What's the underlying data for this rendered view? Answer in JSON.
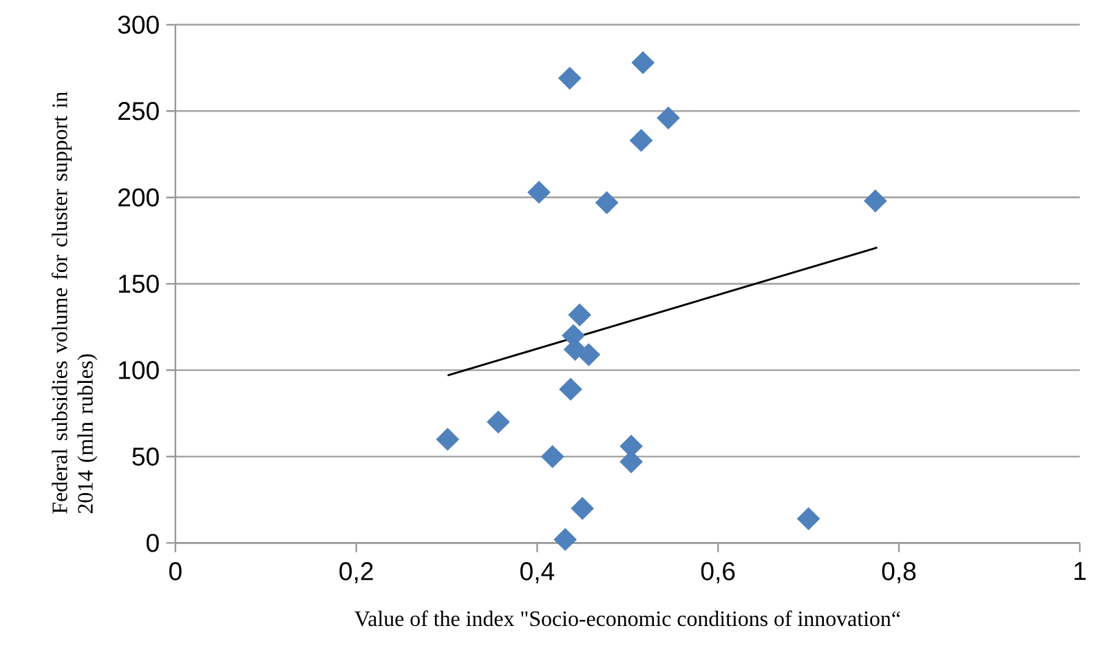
{
  "chart_data": {
    "type": "scatter",
    "xlabel": "Value of the index \"Socio-economic conditions of innovation“",
    "ylabel": "Federal subsidies volume for cluster support in 2014  (mln rubles)",
    "grid": "y",
    "xlim": [
      0,
      1
    ],
    "xticks": [
      0,
      {
        "value": 0.2,
        "label": "0,2"
      },
      {
        "value": 0.4,
        "label": "0,4"
      },
      {
        "value": 0.6,
        "label": "0,6"
      },
      {
        "value": 0.8,
        "label": "0,8"
      },
      1
    ],
    "ylim": [
      0,
      300
    ],
    "yticks": [
      0,
      50,
      100,
      150,
      200,
      250,
      300
    ],
    "series": [
      {
        "marker": "diamond",
        "color": "#4f81bd",
        "x": [
          0.436,
          0.517,
          0.545,
          0.515,
          0.402,
          0.477,
          0.447,
          0.44,
          0.442,
          0.457,
          0.437,
          0.357,
          0.301,
          0.417,
          0.504,
          0.504,
          0.45,
          0.431,
          0.774,
          0.7
        ],
        "values": [
          269,
          278,
          246,
          233,
          203,
          197,
          132,
          120,
          112,
          109,
          89,
          70,
          60,
          50,
          56,
          47,
          20,
          2,
          198,
          14
        ]
      },
      {
        "type": "line",
        "color": "#000000",
        "x": [
          0.301,
          0.776
        ],
        "values": [
          97,
          171
        ]
      }
    ]
  }
}
